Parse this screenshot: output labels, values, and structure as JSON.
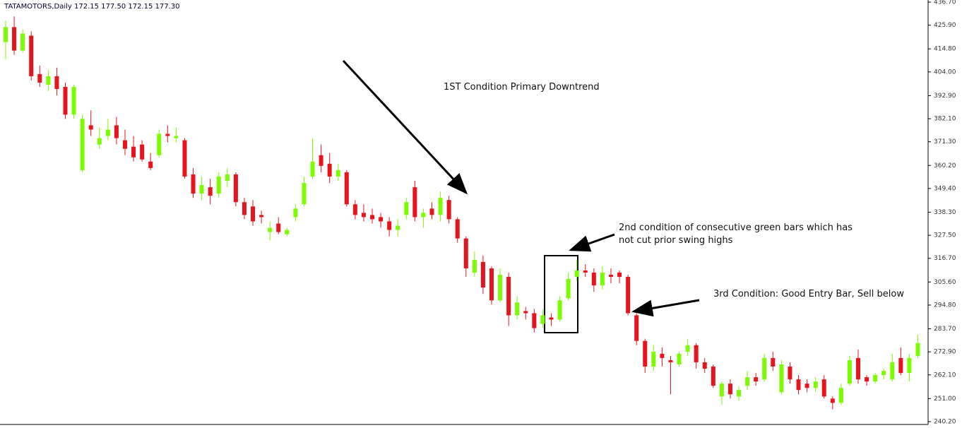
{
  "chart_data": {
    "type": "candlestick",
    "title": "TATAMOTORS,Daily  172.15 177.50 172.15 177.30",
    "up_color": "#7cfc00",
    "down_color": "#e8141c",
    "ylim": [
      240.2,
      436.7
    ],
    "yticks": [
      {
        "value": 436.7,
        "label": "436.70"
      },
      {
        "value": 425.9,
        "label": "425.90"
      },
      {
        "value": 414.8,
        "label": "414.80"
      },
      {
        "value": 404.0,
        "label": "404.00"
      },
      {
        "value": 392.9,
        "label": "392.90"
      },
      {
        "value": 382.1,
        "label": "382.10"
      },
      {
        "value": 371.3,
        "label": "371.30"
      },
      {
        "value": 360.2,
        "label": "360.20"
      },
      {
        "value": 349.4,
        "label": "349.40"
      },
      {
        "value": 338.3,
        "label": "338.30"
      },
      {
        "value": 327.5,
        "label": "327.50"
      },
      {
        "value": 316.7,
        "label": "316.70"
      },
      {
        "value": 305.6,
        "label": "305.60"
      },
      {
        "value": 294.8,
        "label": "294.80"
      },
      {
        "value": 283.7,
        "label": "283.70"
      },
      {
        "value": 272.9,
        "label": "272.90"
      },
      {
        "value": 262.1,
        "label": "262.10"
      },
      {
        "value": 251.0,
        "label": "251.00"
      },
      {
        "value": 240.2,
        "label": "240.20"
      }
    ],
    "annotations": [
      "1ST Condition Primary Downtrend",
      "2nd condition of consecutive green bars which has",
      "not cut prior swing highs",
      "3rd Condition: Good Entry Bar, Sell below"
    ],
    "candles": [
      [
        418,
        428,
        410,
        425
      ],
      [
        425,
        430,
        412,
        414
      ],
      [
        414,
        424,
        413,
        422
      ],
      [
        421,
        423,
        400,
        402
      ],
      [
        403,
        407,
        397,
        399
      ],
      [
        398,
        405,
        395,
        402
      ],
      [
        402,
        406,
        393,
        396
      ],
      [
        397,
        399,
        382,
        384
      ],
      [
        384,
        398,
        382,
        397
      ],
      [
        358,
        384,
        357,
        382
      ],
      [
        379,
        386,
        374,
        377
      ],
      [
        370,
        378,
        368,
        373
      ],
      [
        374,
        382,
        372,
        377
      ],
      [
        379,
        383,
        370,
        373
      ],
      [
        372,
        377,
        365,
        368
      ],
      [
        369,
        374,
        362,
        364
      ],
      [
        370,
        372,
        362,
        363
      ],
      [
        362,
        366,
        358,
        359
      ],
      [
        365,
        377,
        364,
        375
      ],
      [
        375,
        379,
        371,
        374
      ],
      [
        373,
        378,
        371,
        374
      ],
      [
        372,
        373,
        354,
        355
      ],
      [
        356,
        359,
        345,
        347
      ],
      [
        347,
        355,
        344,
        351
      ],
      [
        350,
        354,
        342,
        346
      ],
      [
        347,
        357,
        345,
        355
      ],
      [
        353,
        359,
        350,
        356
      ],
      [
        356,
        357,
        341,
        343
      ],
      [
        343,
        345,
        335,
        337
      ],
      [
        341,
        344,
        332,
        334
      ],
      [
        337,
        339,
        333,
        336
      ],
      [
        329,
        334,
        325,
        331
      ],
      [
        333,
        336,
        328,
        329
      ],
      [
        328,
        331,
        327,
        330
      ],
      [
        336,
        342,
        334,
        340
      ],
      [
        342,
        355,
        341,
        352
      ],
      [
        355,
        373,
        354,
        362
      ],
      [
        365,
        370,
        357,
        360
      ],
      [
        361,
        366,
        352,
        355
      ],
      [
        355,
        361,
        353,
        358
      ],
      [
        357,
        358,
        341,
        342
      ],
      [
        342,
        344,
        335,
        337
      ],
      [
        338,
        342,
        334,
        336
      ],
      [
        337,
        340,
        333,
        335
      ],
      [
        336,
        338,
        331,
        334
      ],
      [
        334,
        336,
        327,
        330
      ],
      [
        330,
        335,
        327,
        332
      ],
      [
        337,
        345,
        335,
        343
      ],
      [
        350,
        353,
        334,
        336
      ],
      [
        336,
        340,
        331,
        338
      ],
      [
        340,
        343,
        335,
        337
      ],
      [
        337,
        348,
        334,
        345
      ],
      [
        344,
        346,
        333,
        335
      ],
      [
        335,
        336,
        324,
        326
      ],
      [
        326,
        327,
        308,
        312
      ],
      [
        310,
        320,
        308,
        316
      ],
      [
        315,
        318,
        300,
        303
      ],
      [
        312,
        313,
        295,
        297
      ],
      [
        297,
        312,
        296,
        309
      ],
      [
        308,
        310,
        285,
        290
      ],
      [
        290,
        299,
        288,
        296
      ],
      [
        292,
        294,
        288,
        291
      ],
      [
        291,
        293,
        282,
        284
      ],
      [
        286,
        293,
        284,
        290
      ],
      [
        289,
        291,
        285,
        288
      ],
      [
        288,
        299,
        287,
        297
      ],
      [
        298,
        310,
        297,
        307
      ],
      [
        308,
        316,
        306,
        311
      ],
      [
        311,
        314,
        308,
        310
      ],
      [
        310,
        312,
        301,
        304
      ],
      [
        304,
        313,
        302,
        310
      ],
      [
        309,
        312,
        305,
        308
      ],
      [
        310,
        311,
        305,
        308
      ],
      [
        308,
        309,
        290,
        291
      ],
      [
        290,
        291,
        276,
        278
      ],
      [
        278,
        279,
        263,
        266
      ],
      [
        266,
        276,
        264,
        273
      ],
      [
        272,
        275,
        266,
        270
      ],
      [
        269,
        271,
        253,
        268
      ],
      [
        267,
        273,
        266,
        272
      ],
      [
        273,
        279,
        271,
        276
      ],
      [
        276,
        277,
        265,
        268
      ],
      [
        268,
        270,
        263,
        265
      ],
      [
        266,
        267,
        256,
        257
      ],
      [
        252,
        259,
        248,
        258
      ],
      [
        258,
        260,
        251,
        253
      ],
      [
        252,
        257,
        250,
        255
      ],
      [
        257,
        264,
        255,
        261
      ],
      [
        261,
        263,
        257,
        259
      ],
      [
        260,
        272,
        259,
        270
      ],
      [
        270,
        273,
        264,
        266
      ],
      [
        254,
        269,
        253,
        267
      ],
      [
        266,
        268,
        258,
        260
      ],
      [
        260,
        262,
        253,
        255
      ],
      [
        258,
        260,
        254,
        256
      ],
      [
        256,
        261,
        254,
        259
      ],
      [
        260,
        262,
        251,
        252
      ],
      [
        251,
        252,
        246,
        249
      ],
      [
        249,
        258,
        248,
        256
      ],
      [
        258,
        271,
        257,
        269
      ],
      [
        270,
        274,
        258,
        260
      ],
      [
        261,
        262,
        257,
        259
      ],
      [
        259,
        263,
        258,
        262
      ],
      [
        262,
        265,
        260,
        264
      ],
      [
        260,
        272,
        259,
        268
      ],
      [
        270,
        275,
        262,
        263
      ],
      [
        263,
        272,
        259,
        270
      ],
      [
        271,
        281,
        270,
        277
      ]
    ]
  }
}
